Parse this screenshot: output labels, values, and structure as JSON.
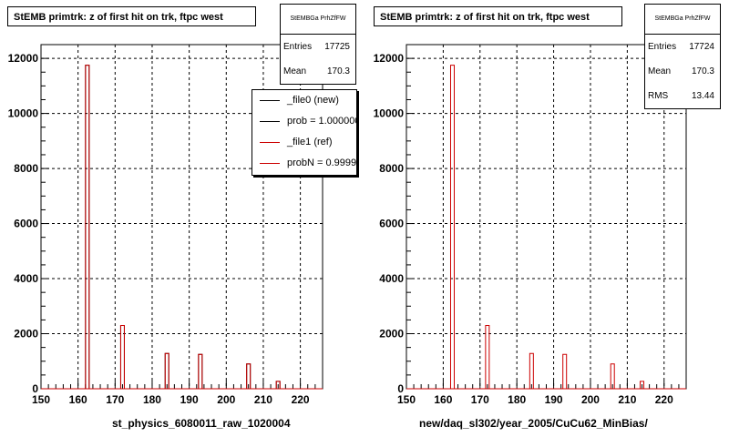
{
  "chart_data": [
    {
      "type": "bar",
      "title": "StEMB primtrk: z of first hit on trk, ftpc west",
      "xlabel": "st_physics_6080011_raw_1020004",
      "ylabel": "",
      "xlim": [
        150,
        226
      ],
      "ylim": [
        0,
        12500
      ],
      "x_ticks": [
        150,
        160,
        170,
        180,
        190,
        200,
        210,
        220
      ],
      "y_ticks": [
        0,
        2000,
        4000,
        6000,
        8000,
        10000,
        12000
      ],
      "grid": true,
      "series": [
        {
          "name": "_file0 (new)",
          "color": "#000000",
          "x": [
            162.5,
            172,
            184,
            193,
            206,
            214
          ],
          "values": [
            11750,
            2300,
            1280,
            1250,
            900,
            270
          ]
        },
        {
          "name": "_file1 (ref)",
          "color": "#cc0000",
          "x": [
            162.5,
            172,
            184,
            193,
            206,
            214
          ],
          "values": [
            11750,
            2300,
            1280,
            1250,
            900,
            270
          ]
        }
      ],
      "stats": {
        "header": "StEMBGa PrhZfFW",
        "entries_label": "Entries",
        "entries": "17725",
        "mean_label": "Mean",
        "mean": "170.3"
      },
      "legend": [
        {
          "label": "_file0 (new)",
          "color": "#000000"
        },
        {
          "label": "prob = 1.000000",
          "color": "#000000"
        },
        {
          "label": "_file1 (ref)",
          "color": "#cc0000"
        },
        {
          "label": "probN = 0.999995",
          "color": "#cc0000"
        }
      ]
    },
    {
      "type": "bar",
      "title": "StEMB primtrk: z of first hit on trk, ftpc west",
      "xlabel": "new/daq_sl302/year_2005/CuCu62_MinBias/",
      "ylabel": "",
      "xlim": [
        150,
        226
      ],
      "ylim": [
        0,
        12500
      ],
      "x_ticks": [
        150,
        160,
        170,
        180,
        190,
        200,
        210,
        220
      ],
      "y_ticks": [
        0,
        2000,
        4000,
        6000,
        8000,
        10000,
        12000
      ],
      "grid": true,
      "series": [
        {
          "color": "#cc0000",
          "x": [
            162.5,
            172,
            184,
            193,
            206,
            214
          ],
          "values": [
            11750,
            2300,
            1280,
            1250,
            900,
            270
          ]
        }
      ],
      "stats": {
        "header": "StEMBGa PrhZfFW",
        "entries_label": "Entries",
        "entries": "17724",
        "mean_label": "Mean",
        "mean": "170.3",
        "rms_label": "RMS",
        "rms": "13.44"
      }
    }
  ]
}
